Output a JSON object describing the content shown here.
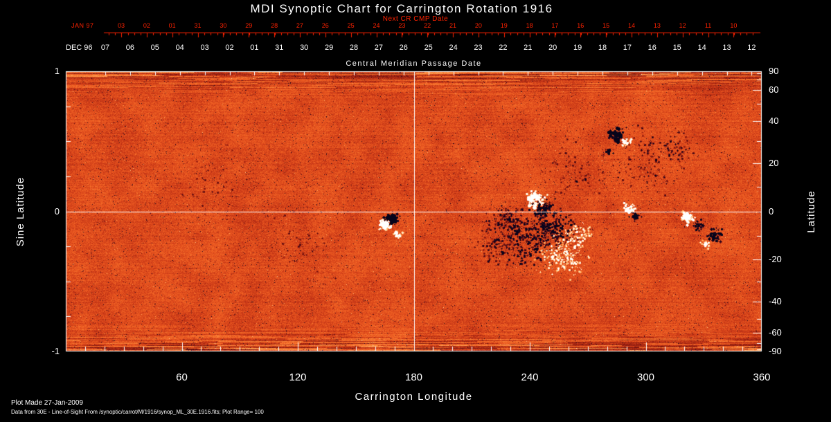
{
  "title": "MDI Synoptic Chart for Carrington Rotation 1916",
  "colors": {
    "background": "#000000",
    "axis": "#ffffff",
    "red_axis": "#ff2200",
    "quiet_sun_orange": "#de4c1d",
    "positive_polarity": "#ffffff",
    "negative_polarity": "#06041a"
  },
  "top_axis": {
    "label": "Next CR CMP Date",
    "month_label": "JAN 97",
    "ticks": [
      "03",
      "02",
      "01",
      "31",
      "30",
      "29",
      "28",
      "27",
      "26",
      "25",
      "24",
      "23",
      "22",
      "21",
      "20",
      "19",
      "18",
      "17",
      "16",
      "15",
      "14",
      "13",
      "12",
      "11",
      "10"
    ]
  },
  "cmp_axis": {
    "label": "Central Meridian Passage Date",
    "month_label": "DEC 96",
    "ticks": [
      "07",
      "06",
      "05",
      "04",
      "03",
      "02",
      "01",
      "31",
      "30",
      "29",
      "28",
      "27",
      "26",
      "25",
      "24",
      "23",
      "22",
      "21",
      "20",
      "19",
      "18",
      "17",
      "16",
      "15",
      "14",
      "13",
      "12"
    ]
  },
  "x_axis": {
    "label": "Carrington Longitude",
    "ticks": [
      60,
      120,
      180,
      240,
      300,
      360
    ],
    "range": [
      0,
      360
    ]
  },
  "y_axis_left": {
    "label": "Sine Latitude",
    "ticks": [
      1,
      0,
      -1
    ],
    "range": [
      -1,
      1
    ]
  },
  "y_axis_right": {
    "label": "Latitude",
    "ticks": [
      90,
      60,
      40,
      20,
      0,
      -20,
      -40,
      -60,
      -90
    ]
  },
  "footer": {
    "line1": "Plot Made 27-Jan-2009",
    "line2": "Data from 30E - Line-of-Sight From /synoptic/carrot/M/1916/synop_ML_30E.1916.fits; Plot Range=  100"
  },
  "chart_data": {
    "type": "heatmap",
    "instrument": "MDI",
    "carrington_rotation": 1916,
    "title": "MDI Synoptic Chart for Carrington Rotation 1916",
    "xlabel": "Carrington Longitude",
    "ylabel_left": "Sine Latitude",
    "ylabel_right": "Latitude",
    "x_range": [
      0,
      360
    ],
    "y_range_sine_latitude": [
      -1,
      1
    ],
    "x_ticks": [
      60,
      120,
      180,
      240,
      300,
      360
    ],
    "y_ticks_left": [
      1,
      0,
      -1
    ],
    "y_ticks_right": [
      90,
      60,
      40,
      20,
      0,
      -20,
      -40,
      -60,
      -90
    ],
    "plot_range_gauss": 100,
    "meridian_line_longitude": 180,
    "equator_line_sine_latitude": 0,
    "description": "Line-of-sight photospheric magnetogram synoptic map: orange-red = quiet Sun, white = positive magnetic polarity, dark/black = negative magnetic polarity; horizontal streak noise near poles",
    "colormap_stops": [
      [
        -1,
        [
          6,
          4,
          26
        ]
      ],
      [
        -0.6,
        [
          44,
          8,
          32
        ]
      ],
      [
        -0.35,
        [
          118,
          18,
          14
        ]
      ],
      [
        -0.1,
        [
          196,
          52,
          22
        ]
      ],
      [
        0.08,
        [
          235,
          88,
          32
        ]
      ],
      [
        0.3,
        [
          250,
          128,
          52
        ]
      ],
      [
        0.55,
        [
          255,
          180,
          106
        ]
      ],
      [
        0.78,
        [
          255,
          226,
          188
        ]
      ],
      [
        1,
        [
          255,
          255,
          255
        ]
      ]
    ],
    "texture": {
      "seed": 19160,
      "grain": 0.16,
      "mottle": 0.13,
      "streak_zone": 46,
      "dark_speckle": 0.016,
      "bright_speckle": 0.003
    },
    "active_regions": [
      {
        "lon": 168.5,
        "slat": -0.05,
        "polarity": "neg",
        "spread_deg": 1.6,
        "n": 90,
        "strength": 1.7,
        "dot_r": 2.2
      },
      {
        "lon": 165.0,
        "slat": -0.09,
        "polarity": "pos",
        "spread_deg": 1.4,
        "n": 70,
        "strength": 1.5,
        "dot_r": 2.0
      },
      {
        "lon": 171.5,
        "slat": -0.16,
        "polarity": "pos",
        "spread_deg": 1.0,
        "n": 25,
        "strength": 1.1,
        "dot_r": 1.5
      },
      {
        "lon": 243,
        "slat": 0.09,
        "polarity": "pos",
        "spread_deg": 2.2,
        "n": 90,
        "strength": 1.3,
        "dot_r": 1.8
      },
      {
        "lon": 247,
        "slat": 0.03,
        "polarity": "neg",
        "spread_deg": 2.6,
        "n": 110,
        "strength": 1.1,
        "dot_r": 1.6
      },
      {
        "lon": 252,
        "slat": -0.12,
        "polarity": "neg",
        "spread_deg": 5.5,
        "n": 260,
        "strength": 0.95,
        "dot_r": 1.4
      },
      {
        "lon": 239,
        "slat": -0.22,
        "polarity": "neg",
        "spread_deg": 7.5,
        "n": 280,
        "strength": 0.85,
        "dot_r": 1.3
      },
      {
        "lon": 222,
        "slat": -0.25,
        "polarity": "neg",
        "spread_deg": 5.0,
        "n": 120,
        "strength": 0.6,
        "dot_r": 1.2
      },
      {
        "lon": 257,
        "slat": -0.31,
        "polarity": "pos",
        "spread_deg": 5.5,
        "n": 230,
        "strength": 0.9,
        "dot_r": 1.4
      },
      {
        "lon": 265,
        "slat": -0.18,
        "polarity": "pos",
        "spread_deg": 3.5,
        "n": 120,
        "strength": 0.85,
        "dot_r": 1.3
      },
      {
        "lon": 229,
        "slat": -0.06,
        "polarity": "neg",
        "spread_deg": 4.5,
        "n": 140,
        "strength": 0.8,
        "dot_r": 1.2
      },
      {
        "lon": 284.5,
        "slat": 0.55,
        "polarity": "neg",
        "spread_deg": 1.8,
        "n": 60,
        "strength": 1.6,
        "dot_r": 2.0
      },
      {
        "lon": 289.5,
        "slat": 0.5,
        "polarity": "pos",
        "spread_deg": 1.2,
        "n": 30,
        "strength": 1.2,
        "dot_r": 1.6
      },
      {
        "lon": 281,
        "slat": 0.43,
        "polarity": "neg",
        "spread_deg": 0.9,
        "n": 15,
        "strength": 1.2,
        "dot_r": 1.4
      },
      {
        "lon": 291.5,
        "slat": 0.02,
        "polarity": "pos",
        "spread_deg": 1.4,
        "n": 45,
        "strength": 1.5,
        "dot_r": 1.8
      },
      {
        "lon": 294.5,
        "slat": -0.03,
        "polarity": "neg",
        "spread_deg": 1.3,
        "n": 30,
        "strength": 1.2,
        "dot_r": 1.5
      },
      {
        "lon": 322,
        "slat": -0.04,
        "polarity": "pos",
        "spread_deg": 1.8,
        "n": 60,
        "strength": 1.45,
        "dot_r": 1.8
      },
      {
        "lon": 327,
        "slat": -0.1,
        "polarity": "neg",
        "spread_deg": 1.4,
        "n": 30,
        "strength": 1.2,
        "dot_r": 1.5
      },
      {
        "lon": 335.5,
        "slat": -0.17,
        "polarity": "neg",
        "spread_deg": 1.8,
        "n": 55,
        "strength": 1.35,
        "dot_r": 1.7
      },
      {
        "lon": 331,
        "slat": -0.23,
        "polarity": "pos",
        "spread_deg": 1.3,
        "n": 25,
        "strength": 1.0,
        "dot_r": 1.4
      },
      {
        "lon": 301,
        "slat": 0.36,
        "polarity": "neg",
        "spread_deg": 10,
        "n": 140,
        "strength": 0.6,
        "dot_r": 1.1
      },
      {
        "lon": 262,
        "slat": 0.26,
        "polarity": "neg",
        "spread_deg": 9,
        "n": 100,
        "strength": 0.55,
        "dot_r": 1.1
      },
      {
        "lon": 316,
        "slat": 0.46,
        "polarity": "neg",
        "spread_deg": 4.5,
        "n": 55,
        "strength": 0.7,
        "dot_r": 1.2
      },
      {
        "lon": 76,
        "slat": 0.23,
        "polarity": "neg",
        "spread_deg": 8,
        "n": 60,
        "strength": 0.5,
        "dot_r": 1.1
      },
      {
        "lon": 120,
        "slat": -0.22,
        "polarity": "neg",
        "spread_deg": 9,
        "n": 55,
        "strength": 0.45,
        "dot_r": 1.0
      }
    ]
  }
}
